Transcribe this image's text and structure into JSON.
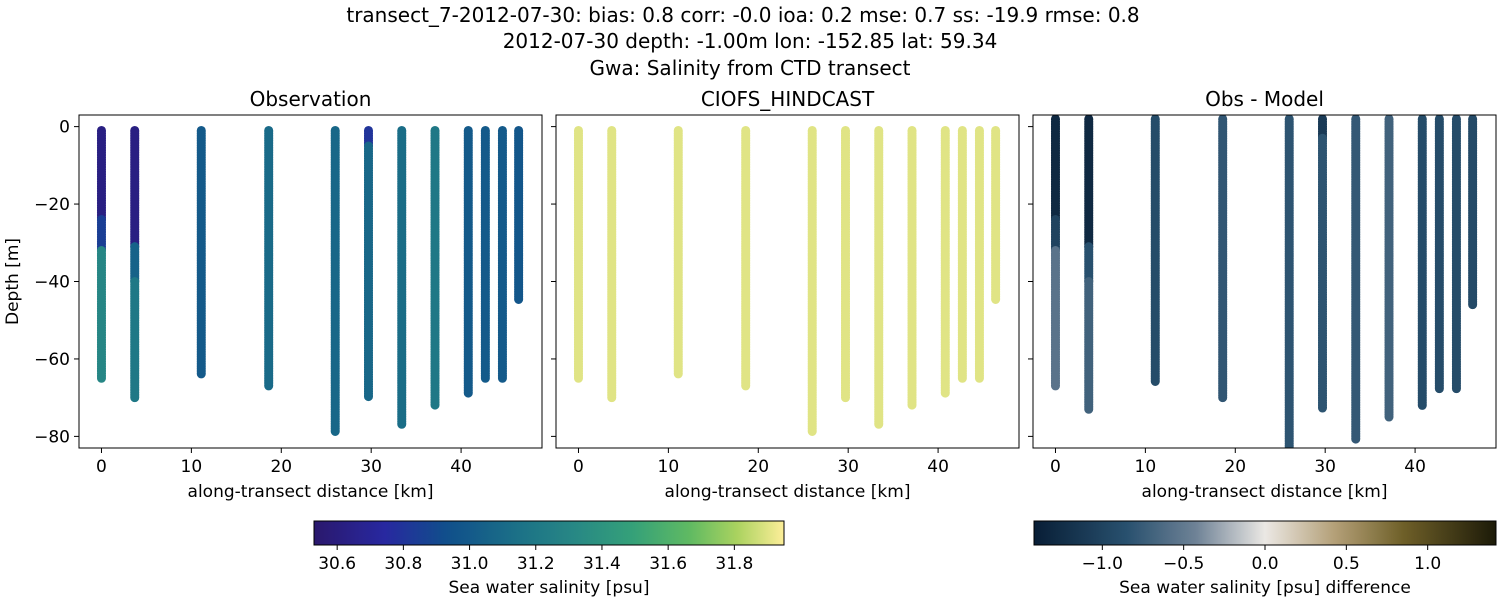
{
  "figure": {
    "title_line1": "transect_7-2012-07-30: bias: 0.8  corr: -0.0  ioa: 0.2  mse: 0.7  ss: -19.9  rmse: 0.8",
    "title_line2": "2012-07-30 depth: -1.00m lon: -152.85 lat: 59.34",
    "title_line3": "Gwa: Salinity from CTD transect"
  },
  "colorbars": [
    {
      "label": "Sea water salinity [psu]",
      "colormap": "haline",
      "range": [
        30.53,
        31.95
      ],
      "ticks": [
        30.6,
        30.8,
        31.0,
        31.2,
        31.4,
        31.6,
        31.8
      ],
      "tick_labels": [
        "30.6",
        "30.8",
        "31.0",
        "31.2",
        "31.4",
        "31.6",
        "31.8"
      ]
    },
    {
      "label": "Sea water salinity [psu] difference",
      "colormap": "diff",
      "range": [
        -1.42,
        1.42
      ],
      "ticks": [
        -1.0,
        -0.5,
        0.0,
        0.5,
        1.0
      ],
      "tick_labels": [
        "−1.0",
        "−0.5",
        "0.0",
        "0.5",
        "1.0"
      ]
    }
  ],
  "chart_data": [
    {
      "type": "scatter",
      "title": "Observation",
      "xlabel": "along-transect distance [km]",
      "ylabel": "Depth [m]",
      "xlim": [
        -2.5,
        49
      ],
      "ylim": [
        -83,
        3
      ],
      "xticks": [
        0,
        10,
        20,
        30,
        40
      ],
      "xtick_labels": [
        "0",
        "10",
        "20",
        "30",
        "40"
      ],
      "yticks": [
        0,
        -20,
        -40,
        -60,
        -80
      ],
      "ytick_labels": [
        "0",
        "−20",
        "−40",
        "−60",
        "−80"
      ],
      "colorbar": 0,
      "profiles": [
        {
          "x": 0.0,
          "max_depth": -65,
          "segments": [
            {
              "from": -1,
              "to": -24,
              "value": 30.62
            },
            {
              "from": -24,
              "to": -32,
              "value": 30.85
            },
            {
              "from": -32,
              "to": -65,
              "value": 31.3
            }
          ]
        },
        {
          "x": 3.7,
          "max_depth": -70,
          "segments": [
            {
              "from": -1,
              "to": -31,
              "value": 30.62
            },
            {
              "from": -31,
              "to": -40,
              "value": 31.05
            },
            {
              "from": -40,
              "to": -70,
              "value": 31.2
            }
          ]
        },
        {
          "x": 11.1,
          "max_depth": -64,
          "segments": [
            {
              "from": -1,
              "to": -64,
              "value": 31.0
            }
          ]
        },
        {
          "x": 18.6,
          "max_depth": -67,
          "segments": [
            {
              "from": -1,
              "to": -67,
              "value": 31.1
            }
          ]
        },
        {
          "x": 26.0,
          "max_depth": -79,
          "segments": [
            {
              "from": -1,
              "to": -79,
              "value": 31.08
            }
          ]
        },
        {
          "x": 29.7,
          "max_depth": -70,
          "segments": [
            {
              "from": -1,
              "to": -5,
              "value": 30.8
            },
            {
              "from": -5,
              "to": -70,
              "value": 31.08
            }
          ]
        },
        {
          "x": 33.4,
          "max_depth": -77,
          "segments": [
            {
              "from": -1,
              "to": -77,
              "value": 31.12
            }
          ]
        },
        {
          "x": 37.1,
          "max_depth": -72,
          "segments": [
            {
              "from": -1,
              "to": -72,
              "value": 31.2
            }
          ]
        },
        {
          "x": 40.8,
          "max_depth": -69,
          "segments": [
            {
              "from": -1,
              "to": -69,
              "value": 31.0
            }
          ]
        },
        {
          "x": 42.7,
          "max_depth": -65,
          "segments": [
            {
              "from": -1,
              "to": -65,
              "value": 31.0
            }
          ]
        },
        {
          "x": 44.6,
          "max_depth": -65,
          "segments": [
            {
              "from": -1,
              "to": -65,
              "value": 31.0
            }
          ]
        },
        {
          "x": 46.4,
          "max_depth": -45,
          "segments": [
            {
              "from": -1,
              "to": -45,
              "value": 30.98
            }
          ]
        }
      ]
    },
    {
      "type": "scatter",
      "title": "CIOFS_HINDCAST",
      "xlabel": "along-transect distance [km]",
      "ylabel": "",
      "xlim": [
        -2.5,
        49
      ],
      "ylim": [
        -83,
        3
      ],
      "xticks": [
        0,
        10,
        20,
        30,
        40
      ],
      "xtick_labels": [
        "0",
        "10",
        "20",
        "30",
        "40"
      ],
      "yticks": [
        0,
        -20,
        -40,
        -60,
        -80
      ],
      "ytick_labels": [],
      "colorbar": 0,
      "profiles": [
        {
          "x": 0.0,
          "max_depth": -65,
          "segments": [
            {
              "from": -1,
              "to": -65,
              "value": 31.9
            }
          ]
        },
        {
          "x": 3.7,
          "max_depth": -70,
          "segments": [
            {
              "from": -1,
              "to": -70,
              "value": 31.9
            }
          ]
        },
        {
          "x": 11.1,
          "max_depth": -64,
          "segments": [
            {
              "from": -1,
              "to": -64,
              "value": 31.9
            }
          ]
        },
        {
          "x": 18.6,
          "max_depth": -67,
          "segments": [
            {
              "from": -1,
              "to": -67,
              "value": 31.9
            }
          ]
        },
        {
          "x": 26.0,
          "max_depth": -79,
          "segments": [
            {
              "from": -1,
              "to": -79,
              "value": 31.9
            }
          ]
        },
        {
          "x": 29.7,
          "max_depth": -70,
          "segments": [
            {
              "from": -1,
              "to": -70,
              "value": 31.9
            }
          ]
        },
        {
          "x": 33.4,
          "max_depth": -77,
          "segments": [
            {
              "from": -1,
              "to": -77,
              "value": 31.9
            }
          ]
        },
        {
          "x": 37.1,
          "max_depth": -72,
          "segments": [
            {
              "from": -1,
              "to": -72,
              "value": 31.9
            }
          ]
        },
        {
          "x": 40.8,
          "max_depth": -69,
          "segments": [
            {
              "from": -1,
              "to": -69,
              "value": 31.9
            }
          ]
        },
        {
          "x": 42.7,
          "max_depth": -65,
          "segments": [
            {
              "from": -1,
              "to": -65,
              "value": 31.9
            }
          ]
        },
        {
          "x": 44.6,
          "max_depth": -65,
          "segments": [
            {
              "from": -1,
              "to": -65,
              "value": 31.9
            }
          ]
        },
        {
          "x": 46.4,
          "max_depth": -45,
          "segments": [
            {
              "from": -1,
              "to": -45,
              "value": 31.9
            }
          ]
        }
      ]
    },
    {
      "type": "scatter",
      "title": "Obs - Model",
      "xlabel": "along-transect distance [km]",
      "ylabel": "",
      "xlim": [
        -2.5,
        49
      ],
      "ylim": [
        -83,
        3
      ],
      "xticks": [
        0,
        10,
        20,
        30,
        40
      ],
      "xtick_labels": [
        "0",
        "10",
        "20",
        "30",
        "40"
      ],
      "yticks": [
        0,
        -20,
        -40,
        -60,
        -80
      ],
      "ytick_labels": [],
      "colorbar": 1,
      "profiles": [
        {
          "x": 0.0,
          "max_depth": -67,
          "segments": [
            {
              "from": 2,
              "to": -24,
              "value": -1.3
            },
            {
              "from": -24,
              "to": -32,
              "value": -1.0
            },
            {
              "from": -32,
              "to": -67,
              "value": -0.55
            }
          ]
        },
        {
          "x": 3.7,
          "max_depth": -73,
          "segments": [
            {
              "from": 2,
              "to": -31,
              "value": -1.3
            },
            {
              "from": -31,
              "to": -40,
              "value": -0.85
            },
            {
              "from": -40,
              "to": -73,
              "value": -0.7
            }
          ]
        },
        {
          "x": 11.1,
          "max_depth": -66,
          "segments": [
            {
              "from": 2,
              "to": -66,
              "value": -0.9
            }
          ]
        },
        {
          "x": 18.6,
          "max_depth": -70,
          "segments": [
            {
              "from": 2,
              "to": -70,
              "value": -0.8
            }
          ]
        },
        {
          "x": 26.0,
          "max_depth": -83,
          "segments": [
            {
              "from": 2,
              "to": -83,
              "value": -0.82
            }
          ]
        },
        {
          "x": 29.7,
          "max_depth": -73,
          "segments": [
            {
              "from": 2,
              "to": -3,
              "value": -1.1
            },
            {
              "from": -3,
              "to": -73,
              "value": -0.82
            }
          ]
        },
        {
          "x": 33.4,
          "max_depth": -81,
          "segments": [
            {
              "from": 2,
              "to": -81,
              "value": -0.78
            }
          ]
        },
        {
          "x": 37.1,
          "max_depth": -75,
          "segments": [
            {
              "from": 2,
              "to": -75,
              "value": -0.7
            }
          ]
        },
        {
          "x": 40.8,
          "max_depth": -72,
          "segments": [
            {
              "from": 2,
              "to": -72,
              "value": -0.9
            }
          ]
        },
        {
          "x": 42.7,
          "max_depth": -68,
          "segments": [
            {
              "from": 2,
              "to": -68,
              "value": -0.9
            }
          ]
        },
        {
          "x": 44.6,
          "max_depth": -68,
          "segments": [
            {
              "from": 2,
              "to": -68,
              "value": -0.9
            }
          ]
        },
        {
          "x": 46.4,
          "max_depth": -46,
          "segments": [
            {
              "from": 2,
              "to": -46,
              "value": -0.92
            }
          ]
        }
      ]
    }
  ]
}
